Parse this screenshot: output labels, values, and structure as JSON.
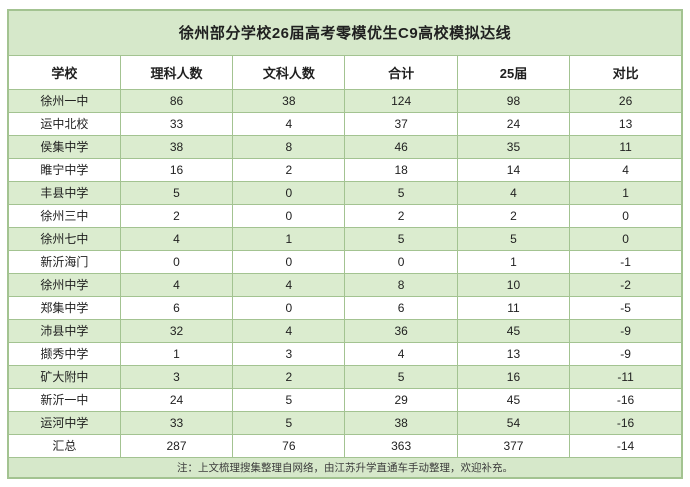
{
  "chart_data": {
    "type": "table",
    "title": "徐州部分学校26届高考零模优生C9高校模拟达线",
    "columns": [
      "学校",
      "理科人数",
      "文科人数",
      "合计",
      "25届",
      "对比"
    ],
    "rows": [
      [
        "徐州一中",
        "86",
        "38",
        "124",
        "98",
        "26"
      ],
      [
        "运中北校",
        "33",
        "4",
        "37",
        "24",
        "13"
      ],
      [
        "侯集中学",
        "38",
        "8",
        "46",
        "35",
        "11"
      ],
      [
        "睢宁中学",
        "16",
        "2",
        "18",
        "14",
        "4"
      ],
      [
        "丰县中学",
        "5",
        "0",
        "5",
        "4",
        "1"
      ],
      [
        "徐州三中",
        "2",
        "0",
        "2",
        "2",
        "0"
      ],
      [
        "徐州七中",
        "4",
        "1",
        "5",
        "5",
        "0"
      ],
      [
        "新沂海门",
        "0",
        "0",
        "0",
        "1",
        "-1"
      ],
      [
        "徐州中学",
        "4",
        "4",
        "8",
        "10",
        "-2"
      ],
      [
        "郑集中学",
        "6",
        "0",
        "6",
        "11",
        "-5"
      ],
      [
        "沛县中学",
        "32",
        "4",
        "36",
        "45",
        "-9"
      ],
      [
        "撷秀中学",
        "1",
        "3",
        "4",
        "13",
        "-9"
      ],
      [
        "矿大附中",
        "3",
        "2",
        "5",
        "16",
        "-11"
      ],
      [
        "新沂一中",
        "24",
        "5",
        "29",
        "45",
        "-16"
      ],
      [
        "运河中学",
        "33",
        "5",
        "38",
        "54",
        "-16"
      ],
      [
        "汇总",
        "287",
        "76",
        "363",
        "377",
        "-14"
      ]
    ],
    "note": "注：上文梳理搜集整理自网络，由江苏升学直通车手动整理，欢迎补充。",
    "layout_hints": {
      "row_striping": "odd rows light green, even rows white",
      "summary_row_index": 15,
      "grid": "on"
    }
  },
  "colors": {
    "title_bg": "#d6e8ca",
    "row_green": "#dbeccf",
    "row_white": "#ffffff",
    "border": "#a3c391",
    "text": "#1f1f1f",
    "note_text": "#3c3c3c"
  }
}
